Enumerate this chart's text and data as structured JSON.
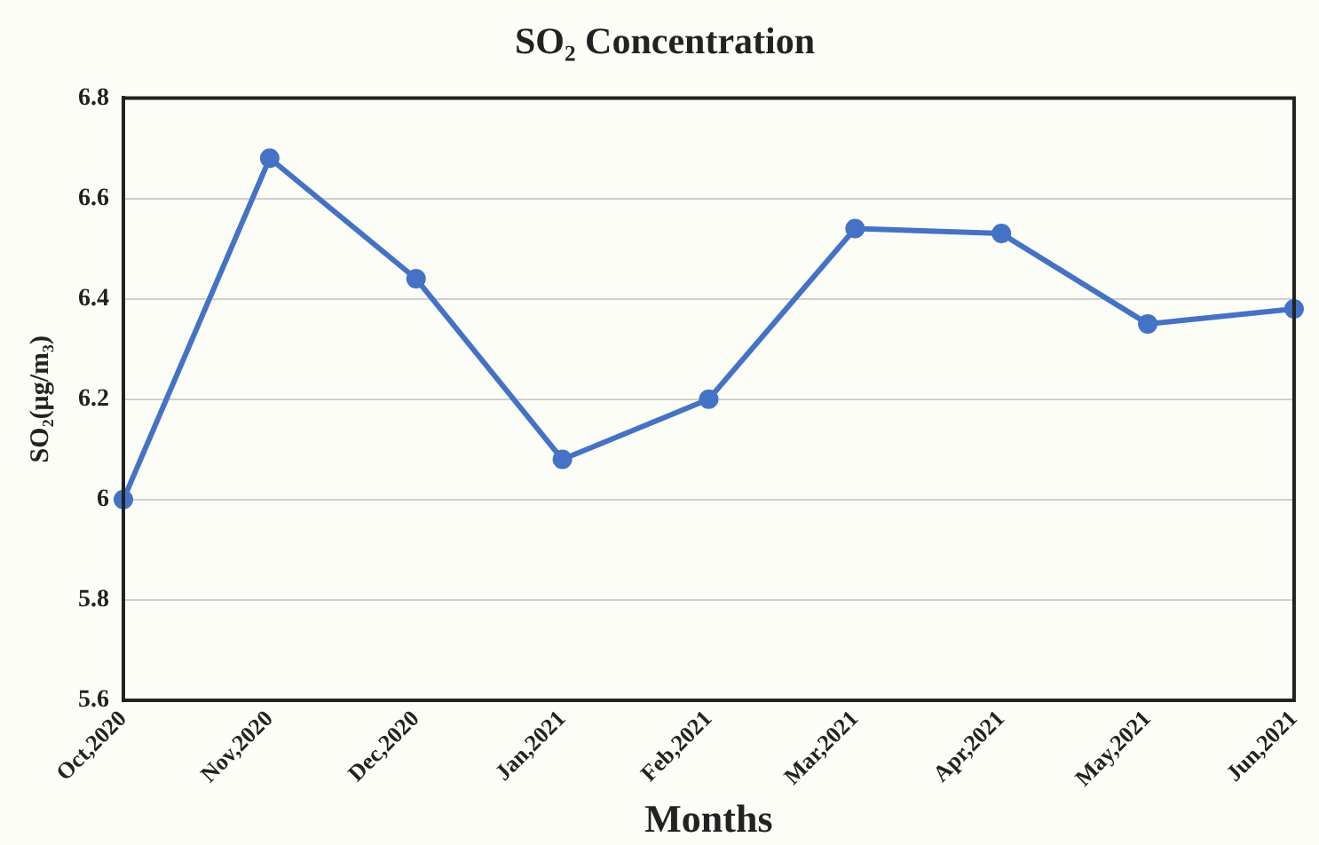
{
  "chart_data": {
    "type": "line",
    "title": "SO₂ Concentration",
    "xlabel": "Months",
    "ylabel": "SO₂(μg/m₃)",
    "categories": [
      "Oct,2020",
      "Nov,2020",
      "Dec,2020",
      "Jan,2021",
      "Feb,2021",
      "Mar,2021",
      "Apr,2021",
      "May,2021",
      "Jun,2021"
    ],
    "series": [
      {
        "color": "#4472c4",
        "values": [
          6.0,
          6.68,
          6.44,
          6.08,
          6.2,
          6.54,
          6.53,
          6.35,
          6.38
        ]
      }
    ],
    "ylim": [
      5.6,
      6.8
    ],
    "yticks": [
      5.6,
      5.8,
      6,
      6.2,
      6.4,
      6.6,
      6.8
    ],
    "grid": "y",
    "legend": false,
    "marker": "circle",
    "line_style": "solid"
  }
}
